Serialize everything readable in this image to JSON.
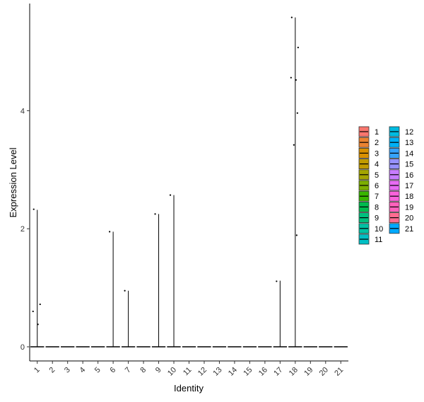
{
  "chart_data": {
    "type": "violin",
    "xlabel": "Identity",
    "ylabel": "Expression Level",
    "ylim": [
      -0.3,
      5.85
    ],
    "y_ticks": [
      0,
      2,
      4
    ],
    "y_tick_labels": [
      "0",
      "2",
      "4"
    ],
    "grid": false,
    "legend_position": "right",
    "legend_title": "",
    "categories": [
      "1",
      "2",
      "3",
      "4",
      "5",
      "6",
      "7",
      "8",
      "9",
      "10",
      "11",
      "12",
      "13",
      "14",
      "15",
      "16",
      "17",
      "18",
      "19",
      "20",
      "21"
    ],
    "colors": [
      "#F8766D",
      "#EA8331",
      "#D89000",
      "#C09B00",
      "#A3A500",
      "#7CAE00",
      "#39B600",
      "#00BB4E",
      "#00BF7D",
      "#00C1A3",
      "#00BFC4",
      "#00BAE0",
      "#00B0F6",
      "#35A2FF",
      "#9590FF",
      "#C77CFF",
      "#E76BF3",
      "#FA62DB",
      "#FF62BC",
      "#FF6C91",
      "#00A9FF"
    ],
    "violin_max": [
      2.32,
      0,
      0,
      0,
      0,
      1.95,
      0.95,
      0,
      2.25,
      2.57,
      0,
      0,
      0,
      0,
      0,
      0,
      1.12,
      5.58,
      0,
      0,
      0
    ],
    "points": [
      {
        "group": "1",
        "values": [
          2.33,
          0.72,
          0.6,
          0.38
        ]
      },
      {
        "group": "6",
        "values": [
          1.95
        ]
      },
      {
        "group": "7",
        "values": [
          0.95
        ]
      },
      {
        "group": "9",
        "values": [
          2.25
        ]
      },
      {
        "group": "10",
        "values": [
          2.57
        ]
      },
      {
        "group": "17",
        "values": [
          1.11
        ]
      },
      {
        "group": "18",
        "values": [
          5.58,
          5.07,
          4.56,
          4.52,
          3.96,
          3.42,
          1.89
        ]
      }
    ]
  }
}
